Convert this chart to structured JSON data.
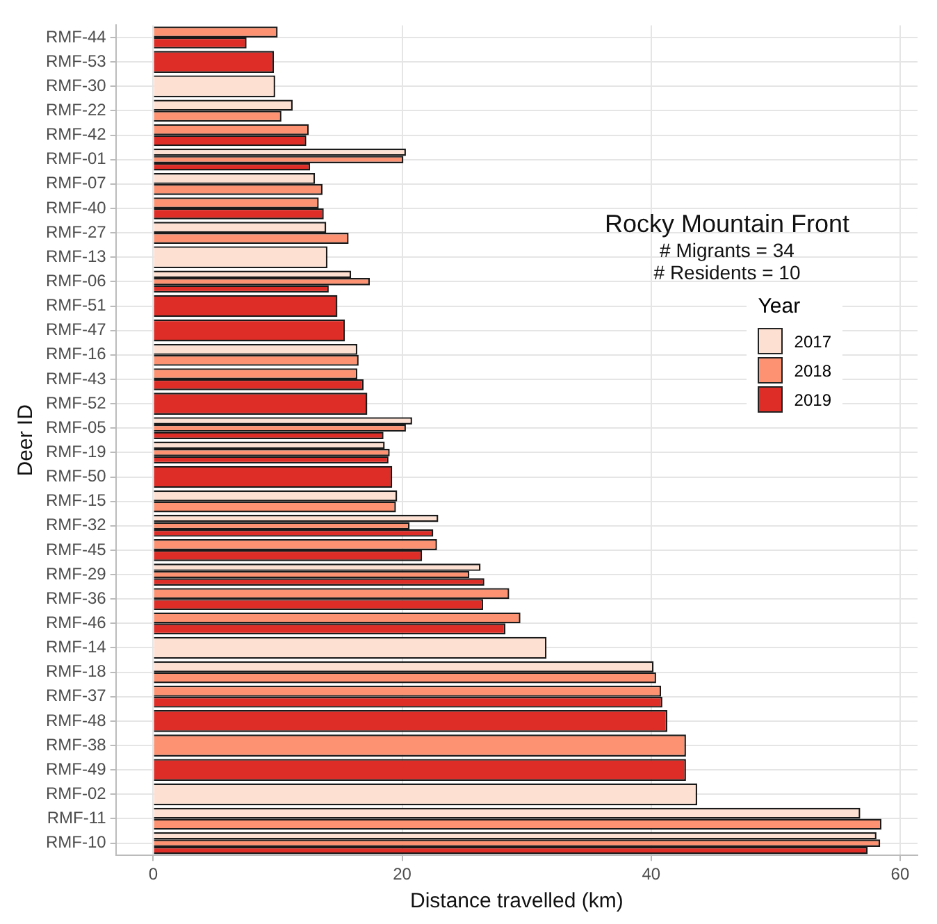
{
  "chart_data": {
    "type": "bar",
    "orientation": "horizontal",
    "xlabel": "Distance travelled (km)",
    "ylabel": "Deer ID",
    "legend_title": "Year",
    "legend": "right",
    "grid": true,
    "annotations": [
      "Rocky Mountain Front",
      "# Migrants = 34",
      "# Residents = 10"
    ],
    "categories": [
      "RMF-44",
      "RMF-53",
      "RMF-30",
      "RMF-22",
      "RMF-42",
      "RMF-01",
      "RMF-07",
      "RMF-40",
      "RMF-27",
      "RMF-13",
      "RMF-06",
      "RMF-51",
      "RMF-47",
      "RMF-16",
      "RMF-43",
      "RMF-52",
      "RMF-05",
      "RMF-19",
      "RMF-50",
      "RMF-15",
      "RMF-32",
      "RMF-45",
      "RMF-29",
      "RMF-36",
      "RMF-46",
      "RMF-14",
      "RMF-18",
      "RMF-37",
      "RMF-48",
      "RMF-38",
      "RMF-49",
      "RMF-02",
      "RMF-11",
      "RMF-10"
    ],
    "xlim": [
      -3,
      61.4
    ],
    "xticks": [
      0,
      20,
      40,
      60
    ],
    "series": [
      {
        "name": "2017",
        "color": "#fee0d2",
        "values": [
          null,
          null,
          9.8,
          11.2,
          null,
          20.3,
          13.0,
          null,
          13.9,
          14.0,
          15.9,
          null,
          null,
          16.4,
          null,
          null,
          20.8,
          18.6,
          null,
          19.6,
          22.9,
          null,
          26.3,
          null,
          null,
          31.6,
          40.2,
          null,
          null,
          null,
          null,
          43.7,
          56.8,
          58.1
        ]
      },
      {
        "name": "2018",
        "color": "#fc9272",
        "values": [
          10.0,
          null,
          null,
          10.3,
          12.5,
          20.1,
          13.6,
          13.3,
          15.7,
          null,
          17.4,
          null,
          null,
          16.5,
          16.4,
          null,
          20.3,
          19.0,
          null,
          19.5,
          20.6,
          22.8,
          25.4,
          28.6,
          29.5,
          null,
          40.4,
          40.8,
          null,
          42.8,
          null,
          null,
          58.5,
          58.4
        ]
      },
      {
        "name": "2019",
        "color": "#de2d26",
        "values": [
          7.5,
          9.7,
          null,
          null,
          12.3,
          12.6,
          null,
          13.7,
          null,
          null,
          14.1,
          14.8,
          15.4,
          null,
          16.9,
          17.2,
          18.5,
          18.9,
          19.2,
          null,
          22.5,
          21.6,
          26.6,
          26.5,
          28.3,
          null,
          null,
          40.9,
          41.3,
          null,
          42.8,
          null,
          null,
          57.4
        ]
      }
    ]
  }
}
